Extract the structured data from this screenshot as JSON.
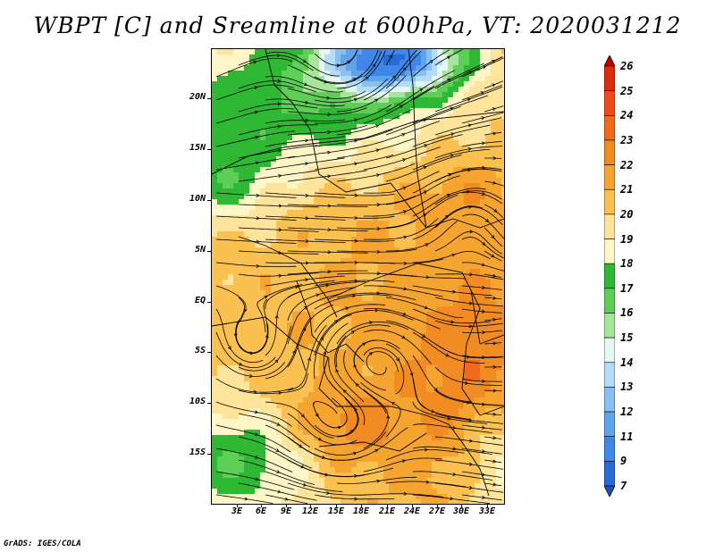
{
  "title": "WBPT [C] and Sreamline at 600hPa, VT: 2020031212",
  "footer": "GrADS: IGES/COLA",
  "map": {
    "lat_labels": [
      "20N",
      "15N",
      "10N",
      "5N",
      "EQ",
      "5S",
      "10S",
      "15S"
    ],
    "lon_labels": [
      "3E",
      "6E",
      "9E",
      "12E",
      "15E",
      "18E",
      "21E",
      "24E",
      "27E",
      "30E",
      "33E"
    ],
    "field": "WBPT",
    "units": "C",
    "level": "600hPa",
    "overlay": "streamlines"
  },
  "colorbar": {
    "labels": [
      "26",
      "25",
      "24",
      "23",
      "22",
      "21",
      "20",
      "19",
      "18",
      "17",
      "16",
      "15",
      "14",
      "13",
      "12",
      "11",
      "9",
      "7"
    ],
    "colors": [
      "#c40000",
      "#e02a10",
      "#f04a18",
      "#f06a1c",
      "#f08c22",
      "#f5a430",
      "#fac050",
      "#fde49a",
      "#fff6c8",
      "#2eb834",
      "#5ecf56",
      "#a6e69a",
      "#e4f8f0",
      "#b4dcf8",
      "#8ac0f0",
      "#5ea4ec",
      "#4088e8",
      "#286ad8",
      "#1a50c0"
    ]
  }
}
